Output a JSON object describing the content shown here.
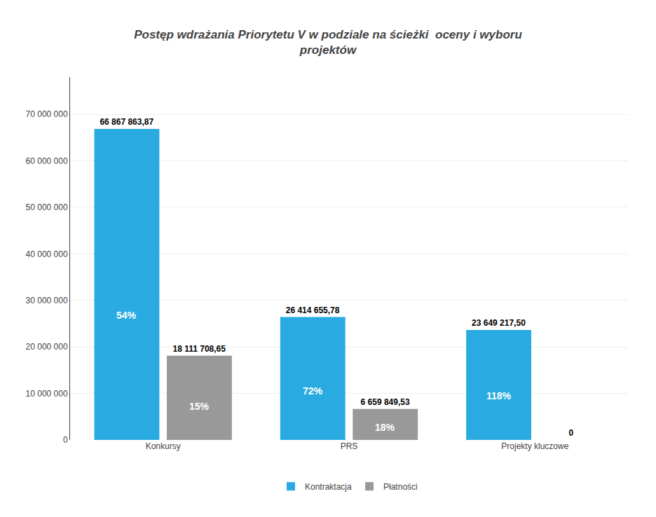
{
  "chart_data": {
    "type": "bar",
    "title": "Postęp wdrażania Priorytetu V w podziale na ścieżki  oceny i wyboru\nprojektów",
    "categories": [
      "Konkursy",
      "PRS",
      "Projekty kluczowe"
    ],
    "series": [
      {
        "name": "Kontraktacja",
        "color": "#29ABE2",
        "values": [
          66867863.87,
          26414655.78,
          23649217.5
        ],
        "value_labels": [
          "66 867 863,87",
          "26 414 655,78",
          "23 649 217,50"
        ],
        "pct_labels": [
          "54%",
          "72%",
          "118%"
        ]
      },
      {
        "name": "Płatności",
        "color": "#999999",
        "values": [
          18111708.65,
          6659849.53,
          0
        ],
        "value_labels": [
          "18 111 708,65",
          "6 659 849,53",
          "0"
        ],
        "pct_labels": [
          "15%",
          "18%",
          null
        ]
      }
    ],
    "ylim": [
      0,
      78000000
    ],
    "yticks": [
      0,
      {
        "value": 10000000,
        "label": "10 000 000"
      },
      {
        "value": 20000000,
        "label": "20 000 000"
      },
      {
        "value": 30000000,
        "label": "30 000 000"
      },
      {
        "value": 40000000,
        "label": "40 000 000"
      },
      {
        "value": 50000000,
        "label": "50 000 000"
      },
      {
        "value": 60000000,
        "label": "60 000 000"
      },
      {
        "value": 70000000,
        "label": "70 000 000"
      }
    ],
    "grid": true,
    "legend": "bottom",
    "data_labels": true
  }
}
